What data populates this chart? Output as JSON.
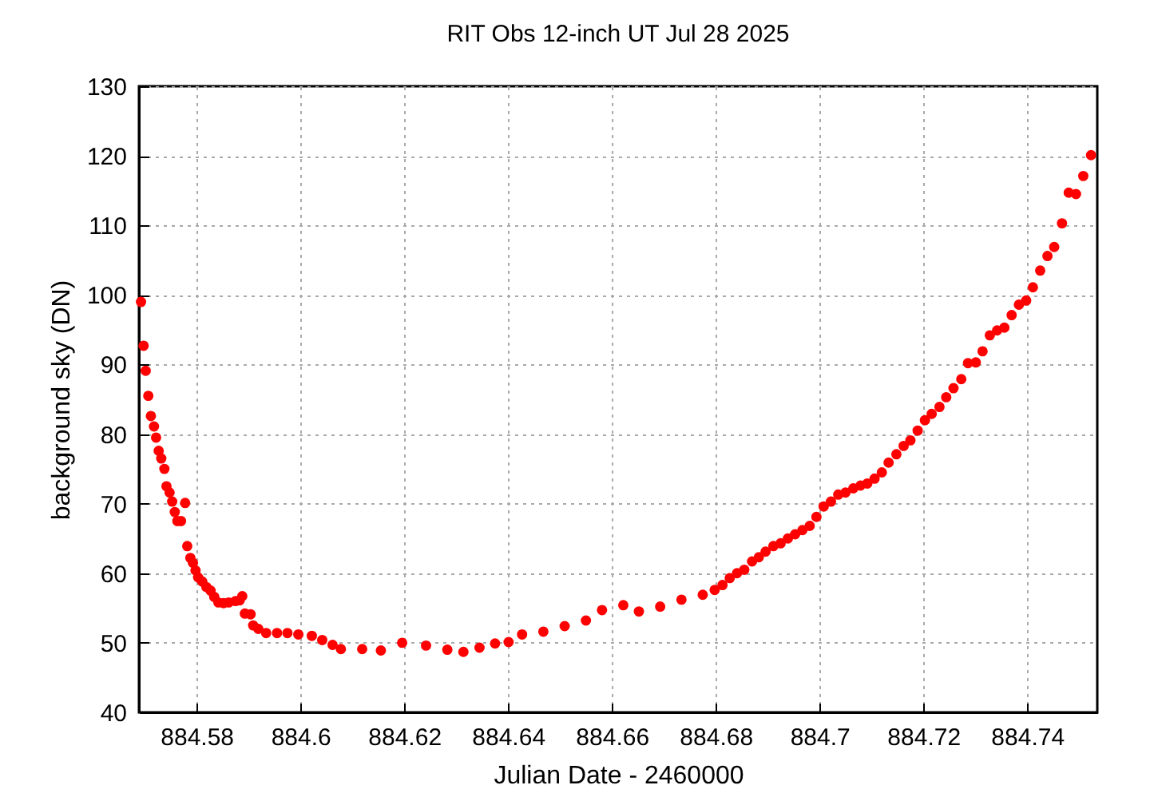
{
  "chart_data": {
    "type": "scatter",
    "title": "RIT Obs 12-inch UT Jul 28 2025",
    "xlabel": "Julian Date - 2460000",
    "ylabel": "background sky (DN)",
    "xlim": [
      884.5689,
      884.7535
    ],
    "ylim": [
      40,
      130
    ],
    "xticks": [
      884.58,
      884.6,
      884.62,
      884.64,
      884.66,
      884.68,
      884.7,
      884.72,
      884.74
    ],
    "yticks": [
      40,
      50,
      60,
      70,
      80,
      90,
      100,
      110,
      120,
      130
    ],
    "grid": true,
    "marker": "circle",
    "series": [
      {
        "color": "#ff0000",
        "x": [
          884.5693,
          884.5698,
          884.5702,
          884.5707,
          884.5712,
          884.5718,
          884.5722,
          884.5727,
          884.5732,
          884.5738,
          884.5742,
          884.5748,
          884.5753,
          884.5758,
          884.5763,
          884.577,
          884.5778,
          884.5782,
          884.5788,
          884.5793,
          884.5798,
          884.5803,
          884.5811,
          884.5819,
          884.5827,
          884.5834,
          884.5842,
          884.5852,
          884.5862,
          884.5875,
          884.5883,
          884.5888,
          884.5893,
          884.5904,
          884.5909,
          884.5919,
          884.5934,
          884.5955,
          884.5975,
          884.5996,
          884.6022,
          884.6042,
          884.6062,
          884.6078,
          884.6119,
          884.6155,
          884.6196,
          884.6242,
          884.6283,
          884.6314,
          884.6345,
          884.6375,
          884.6401,
          884.6427,
          884.6468,
          884.6509,
          884.655,
          884.6581,
          884.6622,
          884.6652,
          884.6693,
          884.6734,
          884.6775,
          884.6798,
          884.6813,
          884.6827,
          884.6841,
          884.6855,
          884.687,
          884.6883,
          884.6896,
          884.6911,
          884.6925,
          884.6939,
          884.6953,
          884.6967,
          884.6981,
          884.6994,
          884.7008,
          884.7022,
          884.7036,
          884.705,
          884.7065,
          884.7079,
          884.7092,
          884.7106,
          884.712,
          884.7133,
          884.7148,
          884.7162,
          884.7175,
          884.7189,
          884.7203,
          884.7216,
          884.7231,
          884.7244,
          884.7258,
          884.7273,
          884.7286,
          884.7301,
          884.7314,
          884.7328,
          884.7342,
          884.7356,
          884.737,
          884.7384,
          884.7398,
          884.7411,
          884.7425,
          884.7439,
          884.7452,
          884.7467,
          884.748,
          884.7494,
          884.7508,
          884.7523
        ],
        "values": [
          99.0,
          92.7,
          89.1,
          85.5,
          82.6,
          81.1,
          79.5,
          77.6,
          76.5,
          75.0,
          72.5,
          71.6,
          70.3,
          68.8,
          67.5,
          67.5,
          70.1,
          63.9,
          62.2,
          61.5,
          60.4,
          59.4,
          58.8,
          58.0,
          57.5,
          56.6,
          55.8,
          55.7,
          55.8,
          56.0,
          56.1,
          56.7,
          54.2,
          54.1,
          52.5,
          52.0,
          51.4,
          51.4,
          51.4,
          51.2,
          51.0,
          50.4,
          49.7,
          49.1,
          49.1,
          48.9,
          50.0,
          49.6,
          49.0,
          48.7,
          49.3,
          49.9,
          50.1,
          51.2,
          51.6,
          52.4,
          53.2,
          54.7,
          55.4,
          54.5,
          55.2,
          56.2,
          56.9,
          57.6,
          58.3,
          59.3,
          60.0,
          60.5,
          61.7,
          62.3,
          63.1,
          63.9,
          64.3,
          65.0,
          65.6,
          66.2,
          66.8,
          68.1,
          69.6,
          70.3,
          71.3,
          71.6,
          72.2,
          72.6,
          72.9,
          73.6,
          74.5,
          75.9,
          77.1,
          78.3,
          79.1,
          80.5,
          82.0,
          82.9,
          83.9,
          85.3,
          86.6,
          87.9,
          90.2,
          90.3,
          91.9,
          94.2,
          94.9,
          95.3,
          97.1,
          98.6,
          99.2,
          101.1,
          103.5,
          105.6,
          106.9,
          110.3,
          114.7,
          114.5,
          117.1,
          120.1
        ]
      }
    ]
  }
}
